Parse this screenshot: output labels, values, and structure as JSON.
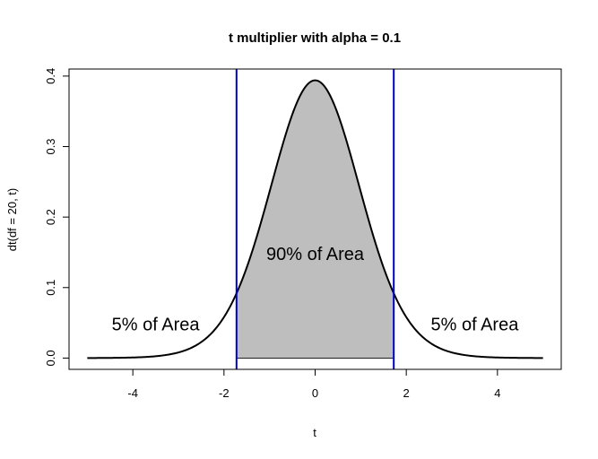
{
  "chart_data": {
    "type": "line",
    "title": "t multiplier with alpha = 0.1",
    "xlabel": "t",
    "ylabel": "dt(df = 20, t)",
    "df": 20,
    "alpha": 0.1,
    "xlim": [
      -5.4,
      5.4
    ],
    "ylim": [
      -0.016,
      0.41
    ],
    "curve_range": [
      -5,
      5
    ],
    "critical_values": [
      -1.725,
      1.725
    ],
    "peak_density": 0.394,
    "x_ticks": [
      -4,
      -2,
      0,
      2,
      4
    ],
    "x_tick_labels": [
      "-4",
      "-2",
      "0",
      "2",
      "4"
    ],
    "y_ticks": [
      0.0,
      0.1,
      0.2,
      0.3,
      0.4
    ],
    "y_tick_labels": [
      "0.0",
      "0.1",
      "0.2",
      "0.3",
      "0.4"
    ],
    "shaded_region": {
      "from": -1.725,
      "to": 1.725,
      "fill": "#bebebe"
    },
    "vertical_lines_color": "#0000cc",
    "curve_color": "#000000",
    "annotations": [
      {
        "text": "5% of Area",
        "x": -3.5,
        "y": 0.048
      },
      {
        "text": "90% of Area",
        "x": 0.0,
        "y": 0.148
      },
      {
        "text": "5% of Area",
        "x": 3.5,
        "y": 0.048
      }
    ]
  }
}
